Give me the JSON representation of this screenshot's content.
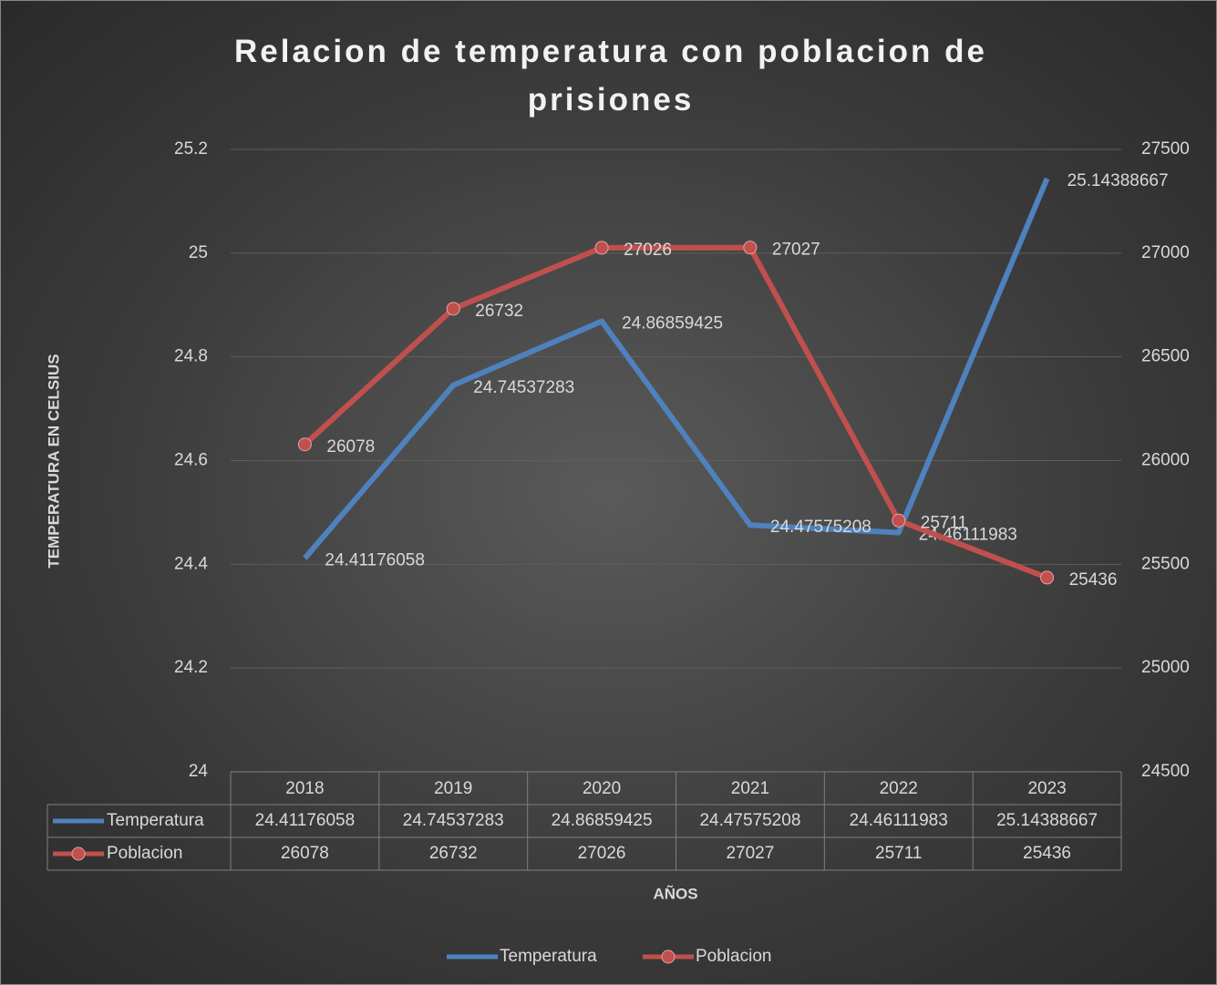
{
  "chart_data": {
    "type": "line",
    "title": "Relacion de temperatura con poblacion de prisiones",
    "y_label": "TEMPERATURA EN CELSIUS",
    "x_label": "AÑOS",
    "categories": [
      "2018",
      "2019",
      "2020",
      "2021",
      "2022",
      "2023"
    ],
    "series": [
      {
        "name": "Temperatura",
        "color": "#4f81bd",
        "values": [
          24.41176058,
          24.74537283,
          24.86859425,
          24.47575208,
          24.46111983,
          25.14388667
        ]
      },
      {
        "name": "Poblacion",
        "color": "#c0504d",
        "axis": "y2",
        "values": [
          26078,
          26732,
          27026,
          27027,
          25711,
          25436
        ]
      }
    ],
    "ylim": [
      24,
      25.2
    ],
    "yticks": [
      24,
      24.2,
      24.4,
      24.6,
      24.8,
      25,
      25.2
    ],
    "y2lim": [
      24500,
      27500
    ],
    "y2ticks": [
      24500,
      25000,
      25500,
      26000,
      26500,
      27000,
      27500
    ],
    "grid": true,
    "legend": "bottom",
    "data_table": true
  }
}
